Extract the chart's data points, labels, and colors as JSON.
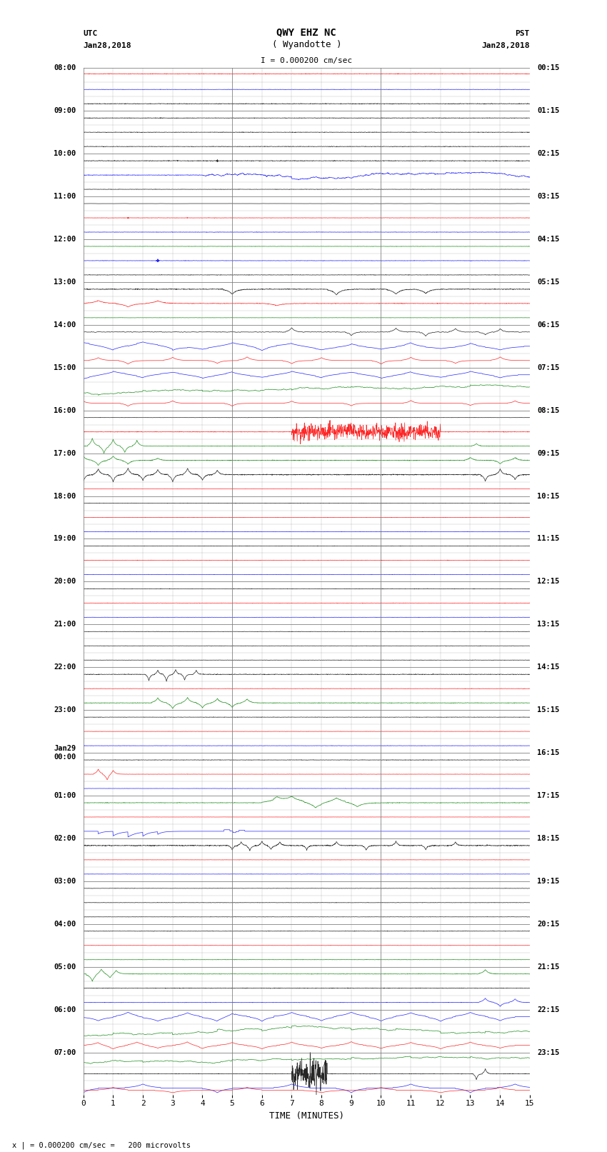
{
  "title_line1": "QWY EHZ NC",
  "title_line2": "( Wyandotte )",
  "scale_label": "I = 0.000200 cm/sec",
  "left_label_top": "UTC",
  "left_label_bot": "Jan28,2018",
  "right_label_top": "PST",
  "right_label_bot": "Jan28,2018",
  "xlabel": "TIME (MINUTES)",
  "bottom_note": "x | = 0.000200 cm/sec =   200 microvolts",
  "utc_times": [
    "08:00",
    "09:00",
    "10:00",
    "11:00",
    "12:00",
    "13:00",
    "14:00",
    "15:00",
    "16:00",
    "17:00",
    "18:00",
    "19:00",
    "20:00",
    "21:00",
    "22:00",
    "23:00",
    "Jan29\n00:00",
    "01:00",
    "02:00",
    "03:00",
    "04:00",
    "05:00",
    "06:00",
    "07:00"
  ],
  "pst_times": [
    "00:15",
    "01:15",
    "02:15",
    "03:15",
    "04:15",
    "05:15",
    "06:15",
    "07:15",
    "08:15",
    "09:15",
    "10:15",
    "11:15",
    "12:15",
    "13:15",
    "14:15",
    "15:15",
    "16:15",
    "17:15",
    "18:15",
    "19:15",
    "20:15",
    "21:15",
    "22:15",
    "23:15"
  ],
  "n_hours": 24,
  "sub_rows": 3,
  "n_cols": 15,
  "bg_color": "#ffffff",
  "figsize": [
    8.5,
    16.13
  ]
}
